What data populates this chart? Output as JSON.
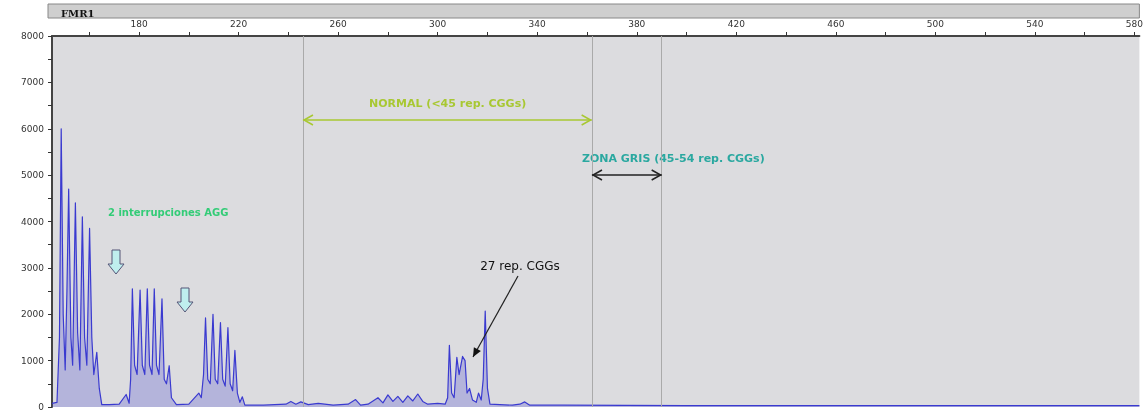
{
  "chart_data": {
    "type": "area",
    "title": "FMR1",
    "x": [
      145,
      147,
      148,
      148.7,
      149.5,
      150.3,
      151,
      151.7,
      152.6,
      153.3,
      154.4,
      155.3,
      156.2,
      157.2,
      158.1,
      159,
      160.1,
      161,
      161.8,
      163,
      164,
      165,
      168,
      172,
      174.8,
      176,
      176.6,
      177.3,
      178.2,
      179.2,
      180.4,
      181.3,
      182.3,
      183.3,
      184.2,
      185.2,
      186.1,
      187,
      188,
      189.2,
      190.1,
      191,
      192.1,
      193,
      195,
      200,
      204,
      205,
      205.9,
      206.7,
      207.6,
      208.6,
      209.7,
      210.6,
      211.6,
      212.7,
      213.6,
      214.6,
      215.7,
      216.6,
      217.6,
      218.5,
      219.5,
      220.5,
      221.5,
      222.5,
      230,
      239,
      241,
      243,
      245,
      248,
      252,
      258,
      264,
      267,
      269,
      272,
      276,
      278,
      280,
      282,
      284,
      286,
      288,
      290,
      292,
      294,
      296,
      300,
      303,
      304,
      304.7,
      305.6,
      306.6,
      307.7,
      308.6,
      310,
      311,
      311.8,
      312.8,
      314,
      315.5,
      316.4,
      317.5,
      318.3,
      319.1,
      320,
      321,
      325,
      330,
      333,
      335,
      337,
      350,
      400,
      582
    ],
    "series": [
      {
        "color": "#3a3ad0",
        "values": [
          80,
          100,
          1500,
          6000,
          2000,
          800,
          2500,
          4700,
          1500,
          900,
          4400,
          1600,
          800,
          4100,
          1500,
          900,
          3850,
          1500,
          700,
          1180,
          400,
          50,
          50,
          60,
          270,
          80,
          600,
          2550,
          900,
          700,
          2520,
          900,
          700,
          2550,
          900,
          700,
          2550,
          900,
          700,
          2330,
          600,
          500,
          890,
          200,
          50,
          60,
          300,
          200,
          700,
          1920,
          600,
          500,
          2000,
          600,
          500,
          1820,
          600,
          450,
          1710,
          500,
          350,
          1220,
          300,
          100,
          220,
          40,
          40,
          60,
          120,
          60,
          110,
          50,
          80,
          40,
          60,
          160,
          40,
          60,
          200,
          90,
          260,
          120,
          230,
          100,
          240,
          130,
          280,
          120,
          60,
          80,
          60,
          200,
          1330,
          300,
          200,
          1070,
          700,
          1090,
          1000,
          300,
          400,
          150,
          100,
          300,
          150,
          600,
          2070,
          400,
          60,
          50,
          40,
          60,
          110,
          40,
          40,
          30,
          30
        ]
      }
    ],
    "xlim": [
      145,
      582
    ],
    "xticks": [
      {
        "value": 160,
        "label": null
      },
      180,
      {
        "value": 200,
        "label": null
      },
      220,
      {
        "value": 240,
        "label": null
      },
      260,
      {
        "value": 280,
        "label": null
      },
      300,
      {
        "value": 320,
        "label": null
      },
      340,
      {
        "value": 360,
        "label": null
      },
      380,
      {
        "value": 400,
        "label": null
      },
      420,
      {
        "value": 440,
        "label": null
      },
      460,
      {
        "value": 480,
        "label": null
      },
      500,
      {
        "value": 520,
        "label": null
      },
      540,
      {
        "value": 560,
        "label": null
      },
      580
    ],
    "ylim": [
      0,
      8000
    ],
    "yticks": [
      0,
      {
        "value": 500,
        "label": null
      },
      1000,
      {
        "value": 1500,
        "label": null
      },
      2000,
      {
        "value": 2500,
        "label": null
      },
      3000,
      {
        "value": 3500,
        "label": null
      },
      4000,
      {
        "value": 4500,
        "label": null
      },
      5000,
      {
        "value": 5500,
        "label": null
      },
      6000,
      {
        "value": 6500,
        "label": null
      },
      7000,
      {
        "value": 7500,
        "label": null
      },
      8000
    ],
    "ref_lines": [
      {
        "axis": "x",
        "value": 246,
        "color": "#aaaaaa"
      },
      {
        "axis": "x",
        "value": 362,
        "color": "#aaaaaa"
      },
      {
        "axis": "x",
        "value": 390,
        "color": "#aaaaaa"
      }
    ],
    "annotations": [
      "NORMAL (<45 rep. CGGs)",
      "ZONA GRIS (45-54 rep. CGGs)",
      "2 interrupciones AGG",
      "27 rep. CGGs"
    ]
  }
}
